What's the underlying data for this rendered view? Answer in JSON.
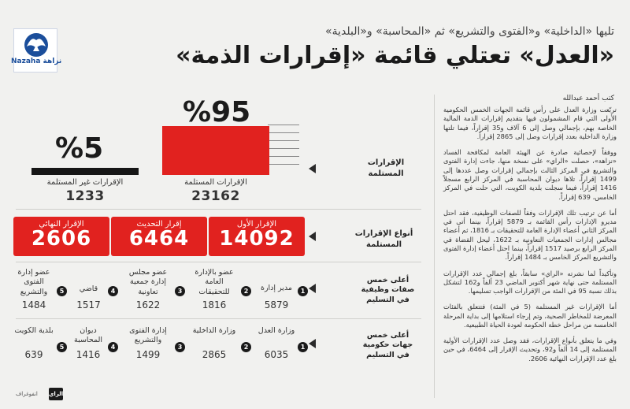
{
  "header": {
    "logo_text": "Nazaha نزاهة",
    "subtitle": "تليها «الداخلية» و«الفتوى والتشريع» ثم «المحاسبة» و«البلدية»",
    "title": "«العدل» تعتلي قائمة «إقرارات الذمة»",
    "author": "كتب أحمد عبدالله"
  },
  "article": [
    "تربّعت وزارة العدل على رأس قائمة الجهات الخمس الحكومية الأولى التي قام المشمولون فيها بتقديم إقرارات الذمة المالية الخاصة بهم، بإجمالي وصل إلى 6 آلاف و35 إقراراً، فيما تلتها وزارة الداخلية بعدد إقرارات وصل إلى 2865 إقراراً.",
    "ووفقاً لإحصائية صادرة عن الهيئة العامة لمكافحة الفساد «نزاهة»، حصلت «الراي» على نسخة منها، جاءت إدارة الفتوى والتشريع في المركز الثالث بإجمالي إقرارات وصل عددها إلى 1499 إقراراً، تلاها ديوان المحاسبة في المركز الرابع مسجلاً 1416 إقراراً، فيما سجلت بلدية الكويت، التي حلت في المركز الخامس، 639 إقراراً.",
    "أما عن ترتيب تلك الإقرارات وفقاً للصفات الوظيفية، فقد احتل مديرو الإدارات رأس القائمة بـ 5879 إقراراً، بينما أتى في المركز الثاني أعضاء الإدارة العامة للتحقيقات بـ 1816، ثم أعضاء مجالس إدارات الجمعيات التعاونية بـ 1622، ليحل القضاة في المركز الرابع برصيد 1517 إقراراً، بينما احتل أعضاء إدارة الفتوى والتشريع المركز الخامس بـ 1484 إقراراً.",
    "وتأكيداً لما نشرته «الراي» سابقاً، بلغ إجمالي عدد الإقرارات المستلمة حتى نهاية شهر أكتوبر الماضي 23 ألفاً و162 لتشكل بذلك نسبة 95 في المئة من الإقرارات الواجب تسليمها.",
    "أما الإقرارات غير المستلمة (5 في المئة) فتتعلق بالفئات المعرضة للمخاطر الصحية، وتم إرجاء استلامها إلى بداية المرحلة الخامسة من مراحل خطة الحكومة لعودة الحياة الطبيعية.",
    "وفي ما يتعلق بأنواع الإقرارات، فقد وصل عدد الإقرارات الأولية المستلمة إلى 14 ألفاً و92، وتحديث الإقرار إلى 6464، في حين بلغ عدد الإقرارات النهائية 2606."
  ],
  "declarations": {
    "row_label": "الإقرارات المستلمة",
    "received": {
      "percent_text": "%95",
      "label": "الإقرارات المستلمة",
      "count": "23162",
      "percent": 95
    },
    "not_received": {
      "percent_text": "%5",
      "label": "الإقرارات غير المستلمة",
      "count": "1233",
      "percent": 5
    }
  },
  "types": {
    "row_label": "أنواع الإقرارات المستلمة",
    "items": [
      {
        "label": "الإقرار الأول",
        "value": "14092"
      },
      {
        "label": "إقرار التحديث",
        "value": "6464"
      },
      {
        "label": "الإقرار النهائي",
        "value": "2606"
      }
    ]
  },
  "job_titles": {
    "row_label": "أعلى خمس صفات وظيفية في التسليم",
    "items": [
      {
        "rank": "1",
        "label": "مدير إدارة",
        "value": "5879"
      },
      {
        "rank": "2",
        "label": "عضو بالإدارة العامة للتحقيقات",
        "value": "1816"
      },
      {
        "rank": "3",
        "label": "عضو مجلس إدارة جمعية تعاونية",
        "value": "1622"
      },
      {
        "rank": "4",
        "label": "قاضي",
        "value": "1517"
      },
      {
        "rank": "5",
        "label": "عضو إدارة الفتوى والتشريع",
        "value": "1484"
      }
    ]
  },
  "agencies": {
    "row_label": "أعلى خمس جهات حكومية في التسليم",
    "items": [
      {
        "rank": "1",
        "label": "وزارة العدل",
        "value": "6035"
      },
      {
        "rank": "2",
        "label": "وزارة الداخلية",
        "value": "2865"
      },
      {
        "rank": "3",
        "label": "إدارة الفتوى والتشريع",
        "value": "1499"
      },
      {
        "rank": "4",
        "label": "ديوان المحاسبة",
        "value": "1416"
      },
      {
        "rank": "5",
        "label": "بلدية الكويت",
        "value": "639"
      }
    ]
  },
  "footer": {
    "credit": "انفوغراف",
    "brand": "الراي"
  },
  "colors": {
    "accent": "#e1221f",
    "dark": "#161616",
    "background": "#f1f1ef",
    "logo_blue": "#1b4e9b"
  }
}
